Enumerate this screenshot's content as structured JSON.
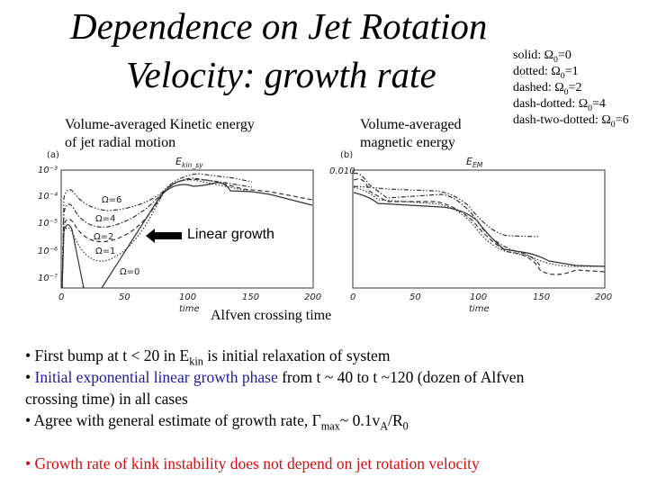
{
  "title": {
    "line1": "Dependence on Jet Rotation",
    "line2": "Velocity: growth rate"
  },
  "legend": [
    {
      "style": "solid: ",
      "omega": "Ω",
      "sub": "0",
      "value": "=0"
    },
    {
      "style": "dotted: ",
      "omega": "Ω",
      "sub": "0",
      "value": "=1"
    },
    {
      "style": "dashed: ",
      "omega": "Ω",
      "sub": "0",
      "value": "=2"
    },
    {
      "style": "dash-dotted: ",
      "omega": "Ω",
      "sub": "0",
      "value": "=4"
    },
    {
      "style": "dash-two-dotted: ",
      "omega": "Ω",
      "sub": "0",
      "value": "=6"
    }
  ],
  "labels": {
    "kinetic_line1": "Volume-averaged Kinetic energy",
    "kinetic_line2": "of jet radial motion",
    "magnetic_line1": "Volume-averaged",
    "magnetic_line2": "magnetic energy"
  },
  "plot_a": {
    "panel": "(a)",
    "title": "E",
    "title_sub": "kin_sy",
    "yticks": [
      "10⁻³",
      "10⁻⁴",
      "10⁻⁵",
      "10⁻⁶",
      "10⁻⁷"
    ],
    "xticks": [
      "0",
      "50",
      "100",
      "150",
      "200"
    ],
    "xlabel": "time",
    "curve_labels": [
      "Ω=6",
      "Ω=4",
      "Ω=2",
      "Ω=1",
      "Ω=0"
    ]
  },
  "plot_b": {
    "panel": "(b)",
    "title": "E",
    "title_sub": "EM",
    "ytick_top": "0.010",
    "xticks": [
      "0",
      "50",
      "100",
      "150",
      "200"
    ],
    "xlabel": "time"
  },
  "annotations": {
    "linear_growth": "Linear growth",
    "alfven": "Alfven crossing time"
  },
  "bullets": {
    "b1": {
      "pre": "• First bump at t < 20 in E",
      "sub": "kin",
      "post": " is initial relaxation of system"
    },
    "b2": {
      "bullet": "• ",
      "highlight": "Initial exponential linear growth phase",
      "post": " from t ~ 40 to t ~120 (dozen of Alfven",
      "line2": "crossing time) in all cases"
    },
    "b3": {
      "pre": "• Agree with general estimate of growth rate, Γ",
      "sub1": "max",
      "mid": "~ 0.1v",
      "sub2": "A",
      "mid2": "/R",
      "sub3": "0"
    },
    "b4": "• Growth rate of kink instability does not depend on jet rotation velocity"
  },
  "colors": {
    "highlight_blue": "#1c1c9c",
    "conclusion_red": "#d01010"
  }
}
